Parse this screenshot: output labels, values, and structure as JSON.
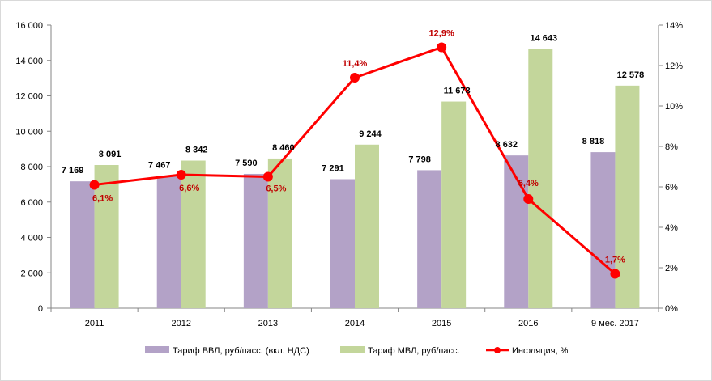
{
  "chart_data": {
    "type": "bar",
    "categories": [
      "2011",
      "2012",
      "2013",
      "2014",
      "2015",
      "2016",
      "9 мес. 2017"
    ],
    "series": [
      {
        "name": "Тариф ВВЛ, руб/пасс. (вкл. НДС)",
        "type": "bar",
        "axis": "left",
        "values": [
          7169,
          7467,
          7590,
          7291,
          7798,
          8632,
          8818
        ],
        "labels": [
          "7 169",
          "7 467",
          "7 590",
          "7 291",
          "7 798",
          "8 632",
          "8 818"
        ],
        "color": "#b3a2c7"
      },
      {
        "name": "Тариф МВЛ, руб/пасс.",
        "type": "bar",
        "axis": "left",
        "values": [
          8091,
          8342,
          8460,
          9244,
          11678,
          14643,
          12578
        ],
        "labels": [
          "8 091",
          "8 342",
          "8 460",
          "9 244",
          "11 678",
          "14 643",
          "12 578"
        ],
        "color": "#c3d69b"
      },
      {
        "name": "Инфляция, %",
        "type": "line",
        "axis": "right",
        "values": [
          6.1,
          6.6,
          6.5,
          11.4,
          12.9,
          5.4,
          1.7
        ],
        "labels": [
          "6,1%",
          "6,6%",
          "6,5%",
          "11,4%",
          "12,9%",
          "5,4%",
          "1,7%"
        ],
        "color": "#ff0000",
        "label_color": "#c00000"
      }
    ],
    "y_left": {
      "min": 0,
      "max": 16000,
      "ticks": [
        0,
        2000,
        4000,
        6000,
        8000,
        10000,
        12000,
        14000,
        16000
      ],
      "tick_labels": [
        "0",
        "2 000",
        "4 000",
        "6 000",
        "8 000",
        "10 000",
        "12 000",
        "14 000",
        "16 000"
      ]
    },
    "y_right": {
      "min": 0,
      "max": 14,
      "ticks": [
        0,
        2,
        4,
        6,
        8,
        10,
        12,
        14
      ],
      "tick_labels": [
        "0%",
        "2%",
        "4%",
        "6%",
        "8%",
        "10%",
        "12%",
        "14%"
      ]
    },
    "title": "",
    "grid": false,
    "legend_position": "bottom"
  }
}
